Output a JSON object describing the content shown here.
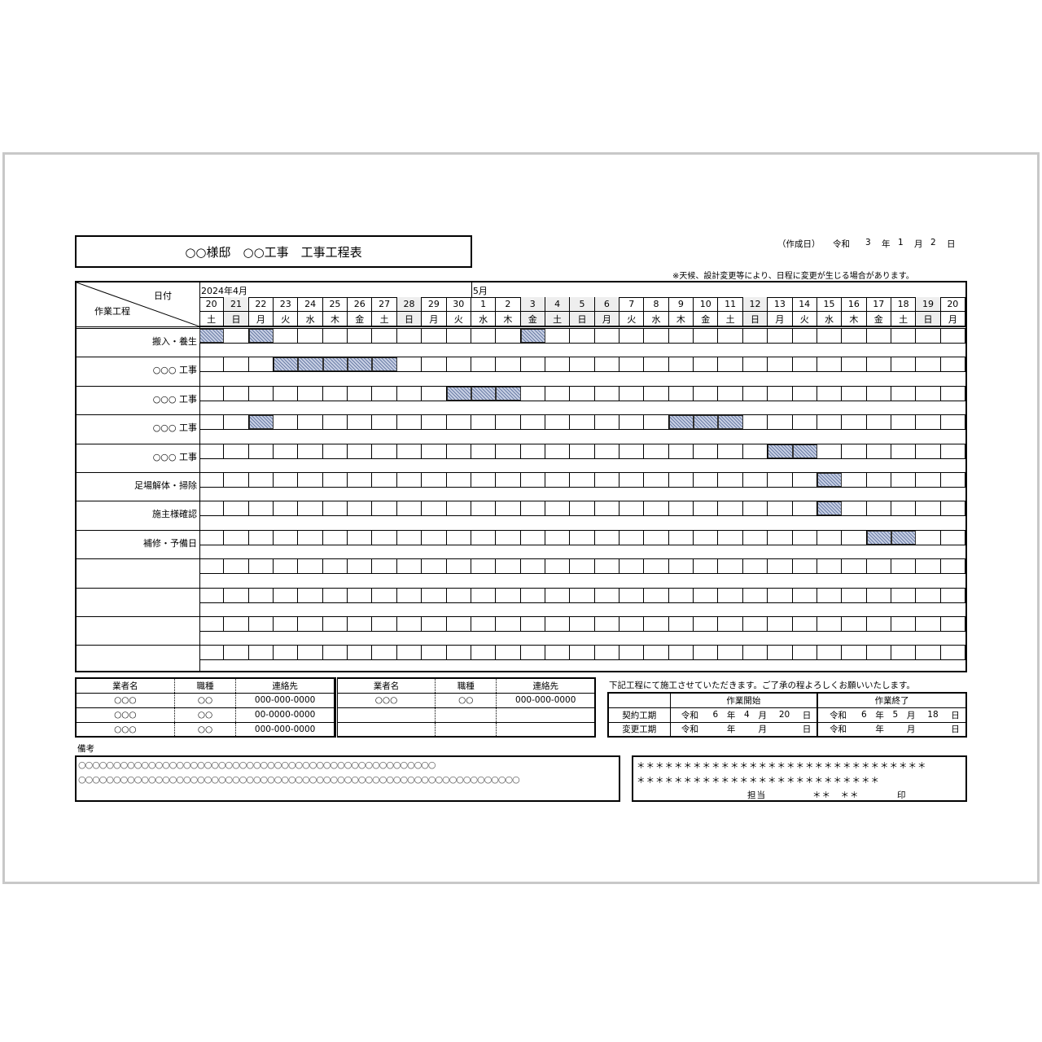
{
  "title": "○○様邸　○○工事　工事工程表",
  "created": {
    "label": "（作成日）",
    "era": "令和",
    "year": "3",
    "year_unit": "年",
    "month": "1",
    "month_unit": "月",
    "day": "2",
    "day_unit": "日"
  },
  "note": "※天候、設計変更等により、日程に変更が生じる場合があります。",
  "schedule": {
    "corner_date": "日付",
    "corner_process": "作業工程",
    "month_labels": [
      {
        "label": "2024年4月",
        "start_index": 0
      },
      {
        "label": "5月",
        "start_index": 11
      }
    ],
    "days": [
      "20",
      "21",
      "22",
      "23",
      "24",
      "25",
      "26",
      "27",
      "28",
      "29",
      "30",
      "1",
      "2",
      "3",
      "4",
      "5",
      "6",
      "7",
      "8",
      "9",
      "10",
      "11",
      "12",
      "13",
      "14",
      "15",
      "16",
      "17",
      "18",
      "19",
      "20"
    ],
    "weekdays": [
      "土",
      "日",
      "月",
      "火",
      "水",
      "木",
      "金",
      "土",
      "日",
      "月",
      "火",
      "水",
      "木",
      "金",
      "土",
      "日",
      "月",
      "火",
      "水",
      "木",
      "金",
      "土",
      "日",
      "月",
      "火",
      "水",
      "木",
      "金",
      "土",
      "日",
      "月"
    ],
    "shaded_days": [
      1,
      8,
      13,
      14,
      15,
      16,
      22,
      29
    ],
    "rows": [
      {
        "name": "搬入・養生",
        "bars": [
          0,
          2,
          13
        ]
      },
      {
        "name": "○○○ 工事",
        "bars": [
          3,
          4,
          5,
          6,
          7
        ]
      },
      {
        "name": "○○○ 工事",
        "bars": [
          10,
          11,
          12
        ]
      },
      {
        "name": "○○○ 工事",
        "bars": [
          2,
          19,
          20,
          21
        ]
      },
      {
        "name": "○○○ 工事",
        "bars": [
          23,
          24
        ]
      },
      {
        "name": "足場解体・掃除",
        "bars": [
          25
        ]
      },
      {
        "name": "施主様確認",
        "bars": [
          25
        ]
      },
      {
        "name": "補修・予備日",
        "bars": [
          27,
          28
        ]
      },
      {
        "name": "",
        "bars": []
      },
      {
        "name": "",
        "bars": []
      },
      {
        "name": "",
        "bars": []
      },
      {
        "name": "",
        "bars": []
      }
    ],
    "bar_color": "#8d9cc0"
  },
  "vendors": {
    "headers": [
      "業者名",
      "職種",
      "連絡先"
    ],
    "left": [
      [
        "○○○",
        "○○",
        "000-000-0000"
      ],
      [
        "○○○",
        "○○",
        "00-0000-0000"
      ],
      [
        "○○○",
        "○○",
        "000-000-0000"
      ]
    ],
    "right": [
      [
        "○○○",
        "○○",
        "000-000-0000"
      ],
      [
        "",
        "",
        ""
      ],
      [
        "",
        "",
        ""
      ]
    ]
  },
  "period": {
    "intro": "下記工程にて施工させていただきます。ご了承の程よろしくお願いいたします。",
    "start_header": "作業開始",
    "end_header": "作業終了",
    "rows": [
      {
        "label": "契約工期",
        "start": [
          "令和",
          "6",
          "年",
          "4",
          "月",
          "20",
          "日"
        ],
        "end": [
          "令和",
          "6",
          "年",
          "5",
          "月",
          "18",
          "日"
        ]
      },
      {
        "label": "変更工期",
        "start": [
          "令和",
          "",
          "年",
          "",
          "月",
          "",
          "日"
        ],
        "end": [
          "令和",
          "",
          "年",
          "",
          "月",
          "",
          "日"
        ]
      }
    ]
  },
  "remarks": {
    "label": "備考",
    "lines": [
      "○○○○○○○○○○○○○○○○○○○○○○○○○○○○○○○○○○○○○○○○○○○○○○○○○○○",
      "○○○○○○○○○○○○○○○○○○○○○○○○○○○○○○○○○○○○○○○○○○○○○○○○○○○○○○○○○○○○○○○"
    ]
  },
  "signature": {
    "line1": "＊＊＊＊＊＊＊＊＊＊＊＊＊＊＊＊＊＊＊＊＊＊＊＊＊＊＊＊＊＊＊",
    "line2": "＊＊＊＊＊＊＊＊＊＊＊＊＊＊＊＊＊＊＊＊＊＊＊＊＊＊",
    "person_label": "担当",
    "person": "＊＊　＊＊",
    "seal": "印"
  }
}
